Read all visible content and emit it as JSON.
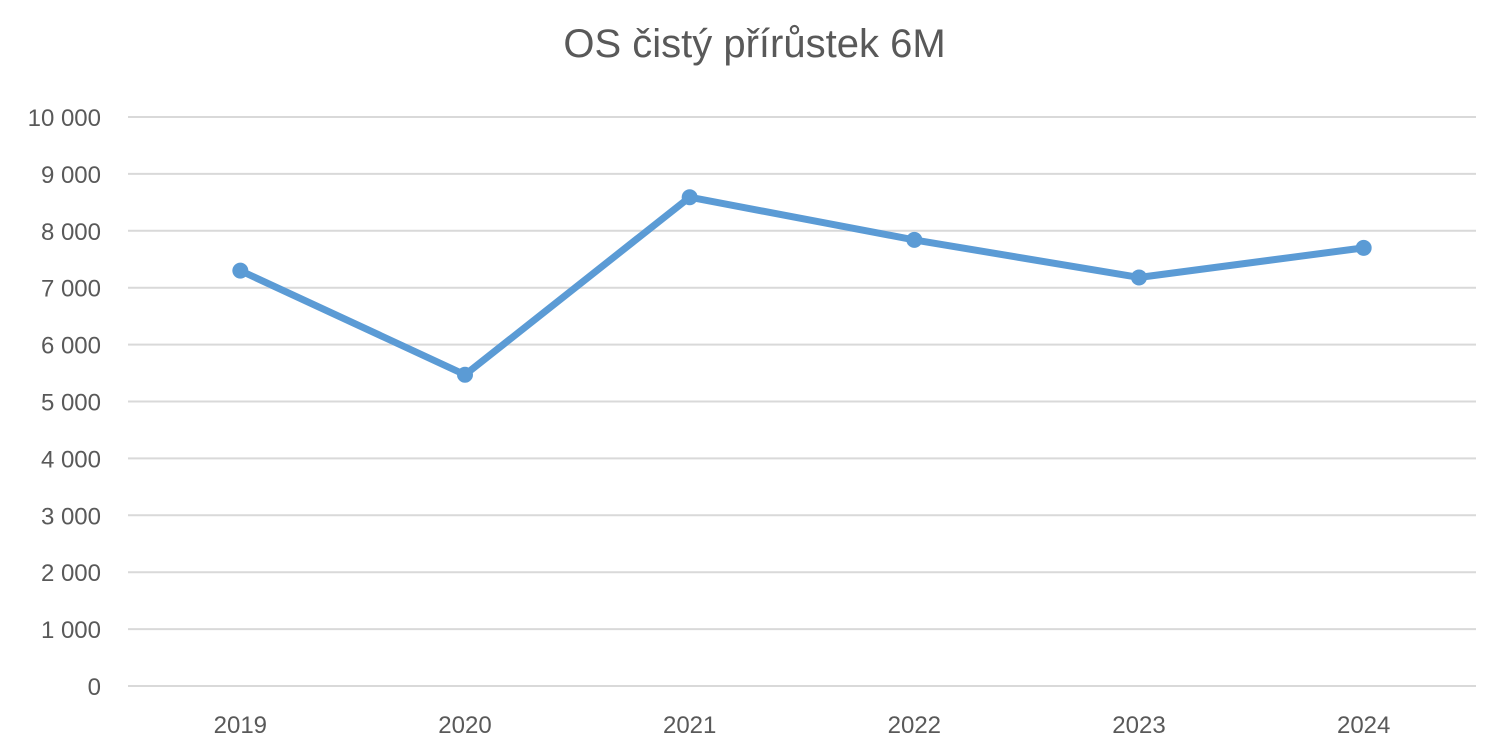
{
  "chart_data": {
    "type": "line",
    "title": "OS čistý přírůstek 6M",
    "xlabel": "",
    "ylabel": "",
    "categories": [
      "2019",
      "2020",
      "2021",
      "2022",
      "2023",
      "2024"
    ],
    "series": [
      {
        "values": [
          7300,
          5470,
          8590,
          7840,
          7180,
          7700
        ]
      }
    ],
    "ylim": [
      0,
      10000
    ],
    "yticks": [
      0,
      1000,
      2000,
      3000,
      4000,
      5000,
      6000,
      7000,
      8000,
      9000,
      10000
    ],
    "ytick_labels": [
      "0",
      "1 000",
      "2 000",
      "3 000",
      "4 000",
      "5 000",
      "6 000",
      "7 000",
      "8 000",
      "9 000",
      "10 000"
    ],
    "grid": true,
    "legend": "none",
    "colors": {
      "series": "#5b9bd5",
      "grid": "#d9d9d9",
      "text": "#595959"
    }
  }
}
